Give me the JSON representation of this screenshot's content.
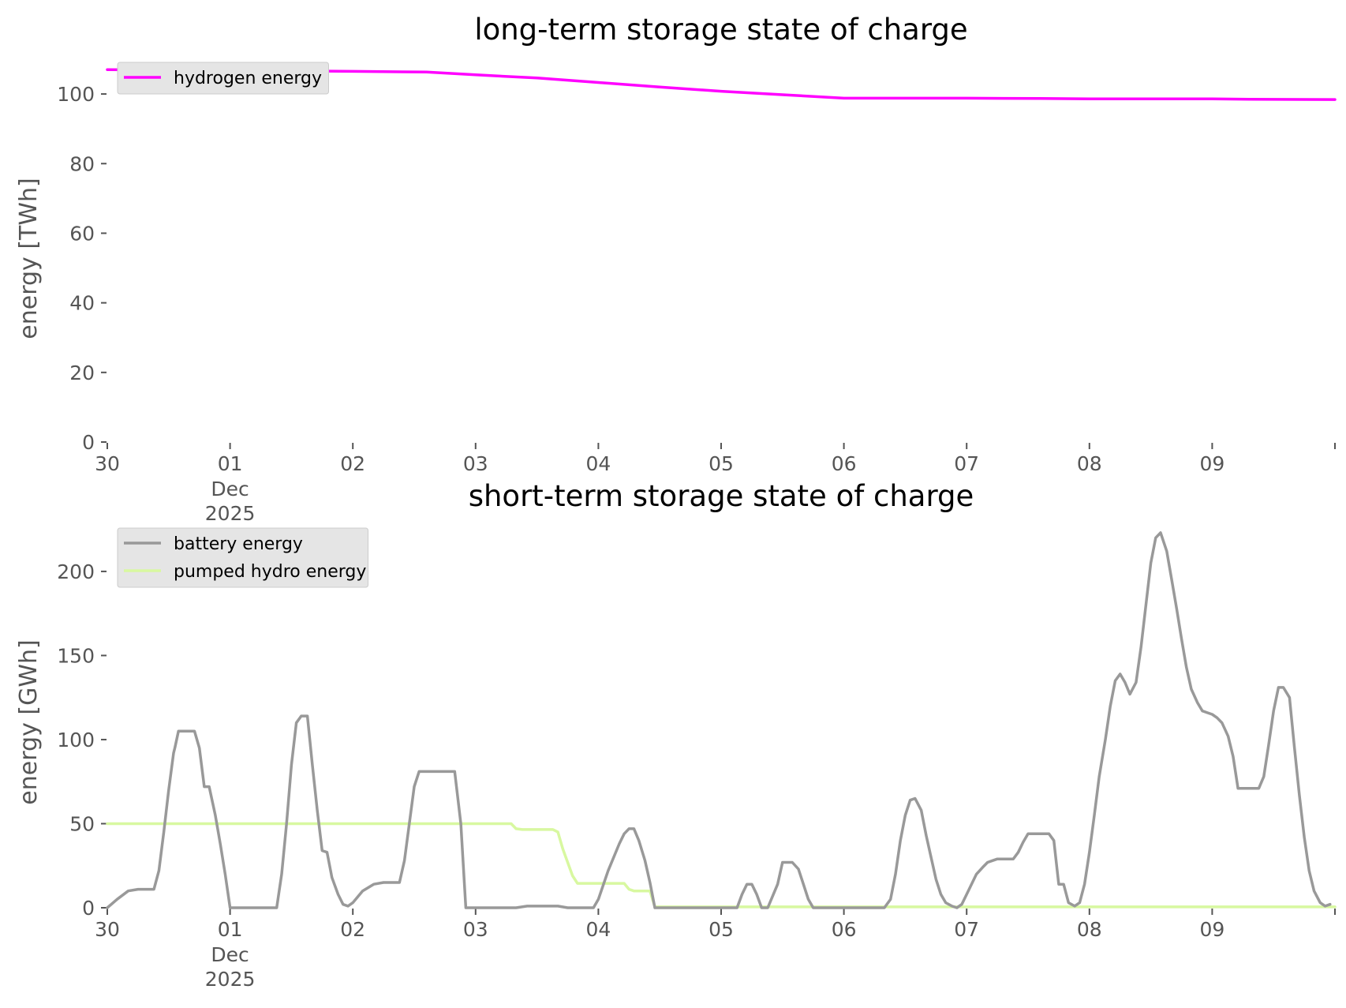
{
  "chart_data": [
    {
      "type": "line",
      "title": "long-term storage state of charge",
      "ylabel": "energy [TWh]",
      "xlabel": "",
      "xlim": [
        0,
        10
      ],
      "ylim": [
        0,
        110
      ],
      "yticks": [
        0,
        20,
        40,
        60,
        80,
        100
      ],
      "xticks": [
        {
          "day": 0,
          "label": "30",
          "sub": [
            "",
            ""
          ]
        },
        {
          "day": 1,
          "label": "01",
          "sub": [
            "Dec",
            "2025"
          ]
        },
        {
          "day": 2,
          "label": "02",
          "sub": [
            "",
            ""
          ]
        },
        {
          "day": 3,
          "label": "03",
          "sub": [
            "",
            ""
          ]
        },
        {
          "day": 4,
          "label": "04",
          "sub": [
            "",
            ""
          ]
        },
        {
          "day": 5,
          "label": "05",
          "sub": [
            "",
            ""
          ]
        },
        {
          "day": 6,
          "label": "06",
          "sub": [
            "",
            ""
          ]
        },
        {
          "day": 7,
          "label": "07",
          "sub": [
            "",
            ""
          ]
        },
        {
          "day": 8,
          "label": "08",
          "sub": [
            "",
            ""
          ]
        },
        {
          "day": 9,
          "label": "09",
          "sub": [
            "",
            ""
          ]
        }
      ],
      "legend_position": "top-left",
      "series": [
        {
          "name": "hydrogen energy",
          "color": "#ff00ff",
          "points": [
            [
              0,
              107
            ],
            [
              1.0,
              106.8
            ],
            [
              2.0,
              106.5
            ],
            [
              2.6,
              106.3
            ],
            [
              3.0,
              105.5
            ],
            [
              3.5,
              104.6
            ],
            [
              4.0,
              103.3
            ],
            [
              4.5,
              102.0
            ],
            [
              5.0,
              100.8
            ],
            [
              5.5,
              99.8
            ],
            [
              5.9,
              99.0
            ],
            [
              6.0,
              98.8
            ],
            [
              7.0,
              98.8
            ],
            [
              7.6,
              98.7
            ],
            [
              8.0,
              98.6
            ],
            [
              9.0,
              98.6
            ],
            [
              9.3,
              98.5
            ],
            [
              10.0,
              98.4
            ]
          ]
        }
      ]
    },
    {
      "type": "line",
      "title": "short-term storage state of charge",
      "ylabel": "energy [GWh]",
      "xlabel": "",
      "xlim": [
        0,
        10
      ],
      "ylim": [
        0,
        230
      ],
      "yticks": [
        0,
        50,
        100,
        150,
        200
      ],
      "xticks": [
        {
          "day": 0,
          "label": "30",
          "sub": [
            "",
            ""
          ]
        },
        {
          "day": 1,
          "label": "01",
          "sub": [
            "Dec",
            "2025"
          ]
        },
        {
          "day": 2,
          "label": "02",
          "sub": [
            "",
            ""
          ]
        },
        {
          "day": 3,
          "label": "03",
          "sub": [
            "",
            ""
          ]
        },
        {
          "day": 4,
          "label": "04",
          "sub": [
            "",
            ""
          ]
        },
        {
          "day": 5,
          "label": "05",
          "sub": [
            "",
            ""
          ]
        },
        {
          "day": 6,
          "label": "06",
          "sub": [
            "",
            ""
          ]
        },
        {
          "day": 7,
          "label": "07",
          "sub": [
            "",
            ""
          ]
        },
        {
          "day": 8,
          "label": "08",
          "sub": [
            "",
            ""
          ]
        },
        {
          "day": 9,
          "label": "09",
          "sub": [
            "",
            ""
          ]
        }
      ],
      "legend_position": "top-left",
      "series": [
        {
          "name": "battery energy",
          "color": "#999999",
          "points": [
            [
              0,
              0
            ],
            [
              0.08,
              5
            ],
            [
              0.17,
              10
            ],
            [
              0.25,
              11
            ],
            [
              0.33,
              11
            ],
            [
              0.38,
              11
            ],
            [
              0.42,
              22
            ],
            [
              0.46,
              45
            ],
            [
              0.5,
              70
            ],
            [
              0.54,
              92
            ],
            [
              0.55,
              95
            ],
            [
              0.58,
              105
            ],
            [
              0.67,
              105
            ],
            [
              0.67,
              105
            ],
            [
              0.71,
              105
            ],
            [
              0.75,
              95
            ],
            [
              0.79,
              72
            ],
            [
              0.83,
              72
            ],
            [
              0.88,
              55
            ],
            [
              0.92,
              38
            ],
            [
              0.96,
              20
            ],
            [
              1.0,
              0
            ],
            [
              1.38,
              0
            ],
            [
              1.42,
              20
            ],
            [
              1.46,
              50
            ],
            [
              1.5,
              85
            ],
            [
              1.54,
              110
            ],
            [
              1.58,
              114
            ],
            [
              1.63,
              114
            ],
            [
              1.67,
              85
            ],
            [
              1.71,
              58
            ],
            [
              1.75,
              34
            ],
            [
              1.79,
              33
            ],
            [
              1.83,
              18
            ],
            [
              1.88,
              8
            ],
            [
              1.92,
              2
            ],
            [
              1.96,
              1
            ],
            [
              2.0,
              3
            ],
            [
              2.08,
              10
            ],
            [
              2.17,
              14
            ],
            [
              2.25,
              15
            ],
            [
              2.33,
              15
            ],
            [
              2.38,
              15
            ],
            [
              2.42,
              28
            ],
            [
              2.46,
              50
            ],
            [
              2.5,
              72
            ],
            [
              2.54,
              81
            ],
            [
              2.63,
              81
            ],
            [
              2.71,
              81
            ],
            [
              2.79,
              81
            ],
            [
              2.83,
              81
            ],
            [
              2.88,
              50
            ],
            [
              2.92,
              0
            ],
            [
              3.0,
              0
            ],
            [
              3.33,
              0
            ],
            [
              3.42,
              1
            ],
            [
              3.67,
              1
            ],
            [
              3.75,
              0
            ],
            [
              3.96,
              0
            ],
            [
              4.0,
              5
            ],
            [
              4.08,
              22
            ],
            [
              4.17,
              38
            ],
            [
              4.21,
              44
            ],
            [
              4.25,
              47
            ],
            [
              4.29,
              47
            ],
            [
              4.33,
              40
            ],
            [
              4.38,
              28
            ],
            [
              4.42,
              15
            ],
            [
              4.46,
              0
            ],
            [
              4.67,
              0
            ],
            [
              5.0,
              0
            ],
            [
              5.13,
              0
            ],
            [
              5.17,
              8
            ],
            [
              5.21,
              14
            ],
            [
              5.25,
              14
            ],
            [
              5.29,
              8
            ],
            [
              5.33,
              0
            ],
            [
              5.38,
              0
            ],
            [
              5.46,
              14
            ],
            [
              5.5,
              27
            ],
            [
              5.58,
              27
            ],
            [
              5.63,
              23
            ],
            [
              5.67,
              14
            ],
            [
              5.71,
              5
            ],
            [
              5.75,
              0
            ],
            [
              6.0,
              0
            ],
            [
              6.33,
              0
            ],
            [
              6.38,
              5
            ],
            [
              6.42,
              20
            ],
            [
              6.46,
              40
            ],
            [
              6.5,
              55
            ],
            [
              6.54,
              64
            ],
            [
              6.58,
              65
            ],
            [
              6.63,
              58
            ],
            [
              6.67,
              43
            ],
            [
              6.71,
              30
            ],
            [
              6.75,
              17
            ],
            [
              6.79,
              8
            ],
            [
              6.83,
              3
            ],
            [
              6.88,
              1
            ],
            [
              6.92,
              0
            ],
            [
              6.96,
              2
            ],
            [
              7.0,
              8
            ],
            [
              7.08,
              20
            ],
            [
              7.13,
              24
            ],
            [
              7.17,
              27
            ],
            [
              7.21,
              28
            ],
            [
              7.25,
              29
            ],
            [
              7.33,
              29
            ],
            [
              7.38,
              29
            ],
            [
              7.42,
              33
            ],
            [
              7.46,
              39
            ],
            [
              7.5,
              44
            ],
            [
              7.58,
              44
            ],
            [
              7.63,
              44
            ],
            [
              7.67,
              44
            ],
            [
              7.71,
              40
            ],
            [
              7.75,
              14
            ],
            [
              7.79,
              14
            ],
            [
              7.83,
              3
            ],
            [
              7.88,
              1
            ],
            [
              7.92,
              3
            ],
            [
              7.96,
              14
            ],
            [
              8.0,
              33
            ],
            [
              8.04,
              55
            ],
            [
              8.08,
              78
            ],
            [
              8.13,
              100
            ],
            [
              8.17,
              120
            ],
            [
              8.21,
              135
            ],
            [
              8.25,
              139
            ],
            [
              8.29,
              134
            ],
            [
              8.33,
              127
            ],
            [
              8.38,
              134
            ],
            [
              8.42,
              155
            ],
            [
              8.46,
              180
            ],
            [
              8.5,
              205
            ],
            [
              8.54,
              220
            ],
            [
              8.58,
              223
            ],
            [
              8.63,
              212
            ],
            [
              8.67,
              195
            ],
            [
              8.71,
              178
            ],
            [
              8.75,
              160
            ],
            [
              8.79,
              143
            ],
            [
              8.83,
              130
            ],
            [
              8.88,
              122
            ],
            [
              8.92,
              117
            ],
            [
              8.96,
              116
            ],
            [
              9.0,
              115
            ],
            [
              9.04,
              113
            ],
            [
              9.08,
              110
            ],
            [
              9.13,
              102
            ],
            [
              9.17,
              90
            ],
            [
              9.21,
              71
            ],
            [
              9.25,
              71
            ],
            [
              9.29,
              71
            ],
            [
              9.33,
              71
            ],
            [
              9.38,
              71
            ],
            [
              9.42,
              78
            ],
            [
              9.46,
              97
            ],
            [
              9.5,
              117
            ],
            [
              9.54,
              131
            ],
            [
              9.58,
              131
            ],
            [
              9.63,
              125
            ],
            [
              9.67,
              95
            ],
            [
              9.71,
              67
            ],
            [
              9.75,
              42
            ],
            [
              9.79,
              22
            ],
            [
              9.83,
              10
            ],
            [
              9.88,
              3
            ],
            [
              9.92,
              1
            ],
            [
              9.96,
              2
            ]
          ]
        },
        {
          "name": "pumped hydro energy",
          "color": "#d8f8a0",
          "points": [
            [
              0,
              50
            ],
            [
              3.25,
              50
            ],
            [
              3.29,
              50
            ],
            [
              3.33,
              47
            ],
            [
              3.38,
              46.5
            ],
            [
              3.63,
              46.5
            ],
            [
              3.67,
              45
            ],
            [
              3.71,
              35
            ],
            [
              3.75,
              27
            ],
            [
              3.79,
              19
            ],
            [
              3.83,
              14.5
            ],
            [
              4.0,
              14.5
            ],
            [
              4.21,
              14.5
            ],
            [
              4.25,
              11
            ],
            [
              4.29,
              10
            ],
            [
              4.42,
              10
            ],
            [
              4.46,
              0.5
            ],
            [
              10.0,
              0.5
            ]
          ]
        }
      ]
    }
  ]
}
